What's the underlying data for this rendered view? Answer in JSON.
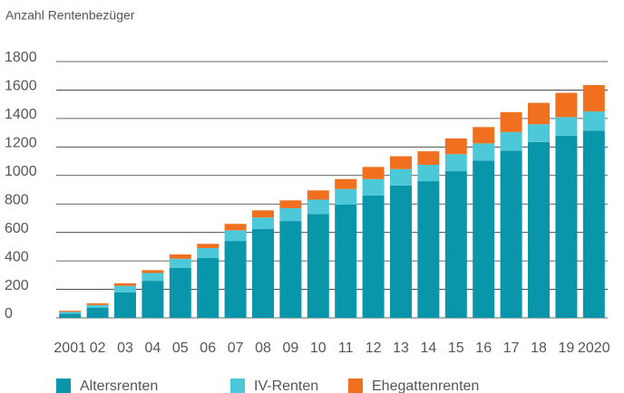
{
  "chart_data": {
    "type": "bar",
    "stacked": true,
    "y_label": "Anzahl Rentenbezüger",
    "categories": [
      "2001",
      "02",
      "03",
      "04",
      "05",
      "06",
      "07",
      "08",
      "09",
      "10",
      "11",
      "12",
      "13",
      "14",
      "15",
      "16",
      "17",
      "18",
      "19",
      "2020"
    ],
    "series": [
      {
        "name": "Altersrenten",
        "color": "#0a96aa",
        "values": [
          30,
          70,
          180,
          260,
          350,
          420,
          540,
          625,
          680,
          730,
          795,
          860,
          930,
          960,
          1030,
          1105,
          1175,
          1235,
          1280,
          1315
        ]
      },
      {
        "name": "IV-Renten",
        "color": "#4dc8d8",
        "values": [
          12,
          20,
          45,
          55,
          65,
          70,
          75,
          80,
          90,
          100,
          110,
          115,
          115,
          115,
          120,
          120,
          130,
          125,
          130,
          135
        ]
      },
      {
        "name": "Ehegattenrenten",
        "color": "#f07020",
        "values": [
          8,
          12,
          18,
          20,
          30,
          30,
          45,
          50,
          55,
          65,
          70,
          85,
          90,
          95,
          110,
          115,
          140,
          150,
          170,
          185
        ]
      }
    ],
    "ylim": [
      0,
      1800
    ],
    "yticks": [
      0,
      200,
      400,
      600,
      800,
      1000,
      1200,
      1400,
      1600,
      1800
    ],
    "grid": true,
    "legend": "bottom"
  }
}
